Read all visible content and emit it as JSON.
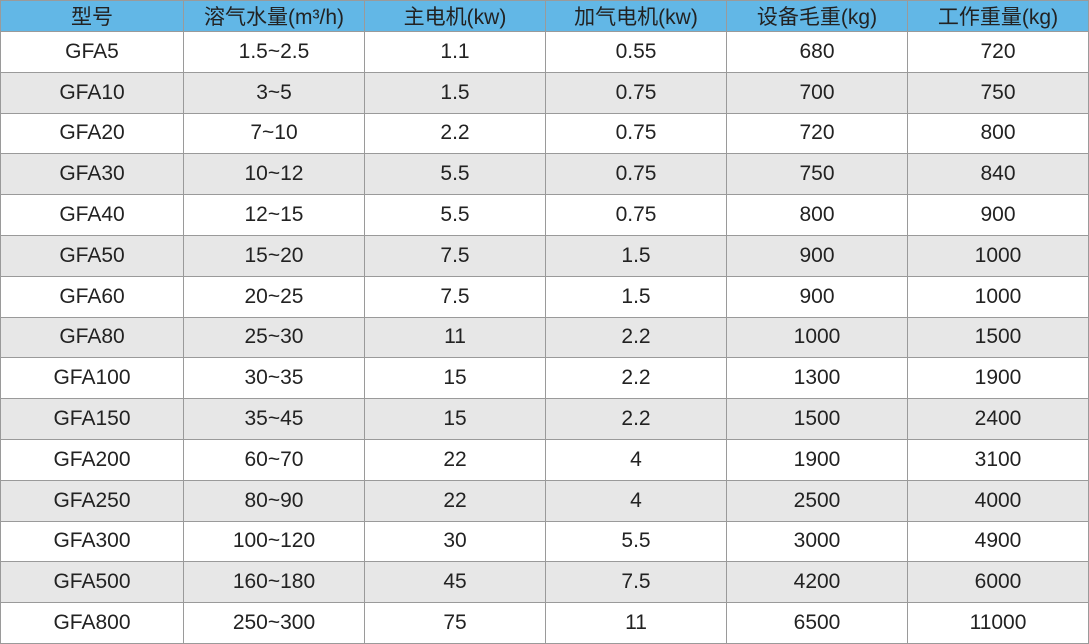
{
  "table": {
    "header": [
      "型号",
      "溶气水量(m³/h)",
      "主电机(kw)",
      "加气电机(kw)",
      "设备毛重(kg)",
      "工作重量(kg)"
    ],
    "rows": [
      [
        "GFA5",
        "1.5~2.5",
        "1.1",
        "0.55",
        "680",
        "720"
      ],
      [
        "GFA10",
        "3~5",
        "1.5",
        "0.75",
        "700",
        "750"
      ],
      [
        "GFA20",
        "7~10",
        "2.2",
        "0.75",
        "720",
        "800"
      ],
      [
        "GFA30",
        "10~12",
        "5.5",
        "0.75",
        "750",
        "840"
      ],
      [
        "GFA40",
        "12~15",
        "5.5",
        "0.75",
        "800",
        "900"
      ],
      [
        "GFA50",
        "15~20",
        "7.5",
        "1.5",
        "900",
        "1000"
      ],
      [
        "GFA60",
        "20~25",
        "7.5",
        "1.5",
        "900",
        "1000"
      ],
      [
        "GFA80",
        "25~30",
        "11",
        "2.2",
        "1000",
        "1500"
      ],
      [
        "GFA100",
        "30~35",
        "15",
        "2.2",
        "1300",
        "1900"
      ],
      [
        "GFA150",
        "35~45",
        "15",
        "2.2",
        "1500",
        "2400"
      ],
      [
        "GFA200",
        "60~70",
        "22",
        "4",
        "1900",
        "3100"
      ],
      [
        "GFA250",
        "80~90",
        "22",
        "4",
        "2500",
        "4000"
      ],
      [
        "GFA300",
        "100~120",
        "30",
        "5.5",
        "3000",
        "4900"
      ],
      [
        "GFA500",
        "160~180",
        "45",
        "7.5",
        "4200",
        "6000"
      ],
      [
        "GFA800",
        "250~300",
        "75",
        "11",
        "6500",
        "11000"
      ]
    ]
  }
}
